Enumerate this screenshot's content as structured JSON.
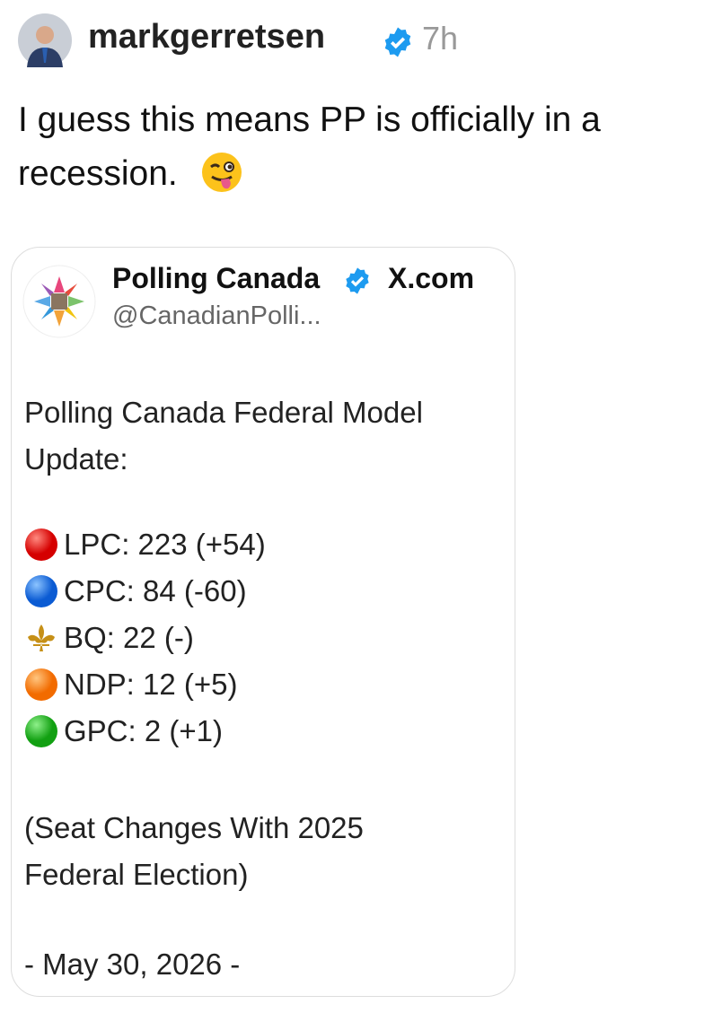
{
  "post": {
    "username": "markgerretsen",
    "time": "7h",
    "text": "I guess this means PP is officially in a recession."
  },
  "card": {
    "name": "Polling Canada",
    "source": "X.com",
    "handle": "@CanadianPolli...",
    "heading": "Polling Canada Federal Model Update:",
    "results": [
      "LPC: 223 (+54)",
      "CPC: 84 (-60)",
      "BQ: 22 (-)",
      "NDP: 12 (+5)",
      "GPC: 2 (+1)"
    ],
    "note": "(Seat Changes With 2025 Federal Election)",
    "date": "- May 30, 2026 -"
  }
}
